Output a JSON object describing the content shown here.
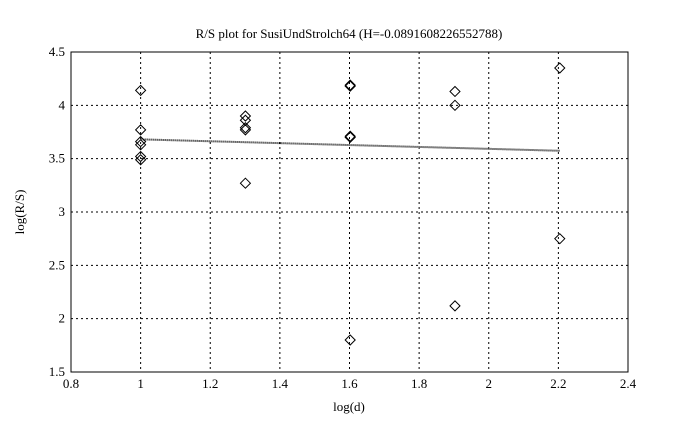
{
  "chart_data": {
    "type": "scatter",
    "title": "R/S plot for SusiUndStrolch64 (H=-0.0891608226552788)",
    "xlabel": "log(d)",
    "ylabel": "log(R/S)",
    "xlim": [
      0.8,
      2.4
    ],
    "ylim": [
      1.5,
      4.5
    ],
    "xticks": [
      "0.8",
      "1",
      "1.2",
      "1.4",
      "1.6",
      "1.8",
      "2",
      "2.2",
      "2.4"
    ],
    "yticks": [
      "1.5",
      "2",
      "2.5",
      "3",
      "3.5",
      "4",
      "4.5"
    ],
    "grid": true,
    "marker": "diamond",
    "points": [
      [
        1.0,
        4.14
      ],
      [
        1.0,
        3.77
      ],
      [
        1.0,
        3.66
      ],
      [
        1.0,
        3.63
      ],
      [
        1.0,
        3.52
      ],
      [
        1.0,
        3.49
      ],
      [
        1.301,
        3.9
      ],
      [
        1.301,
        3.86
      ],
      [
        1.301,
        3.79
      ],
      [
        1.301,
        3.77
      ],
      [
        1.301,
        3.27
      ],
      [
        1.602,
        4.19
      ],
      [
        1.602,
        4.18
      ],
      [
        1.602,
        3.71
      ],
      [
        1.602,
        3.7
      ],
      [
        1.602,
        1.8
      ],
      [
        1.903,
        4.13
      ],
      [
        1.903,
        4.0
      ],
      [
        1.903,
        2.12
      ],
      [
        2.204,
        4.35
      ],
      [
        2.204,
        2.75
      ]
    ],
    "fit_line": {
      "x": [
        1.0,
        2.204
      ],
      "y": [
        3.681,
        3.574
      ],
      "style": "dotted"
    }
  }
}
